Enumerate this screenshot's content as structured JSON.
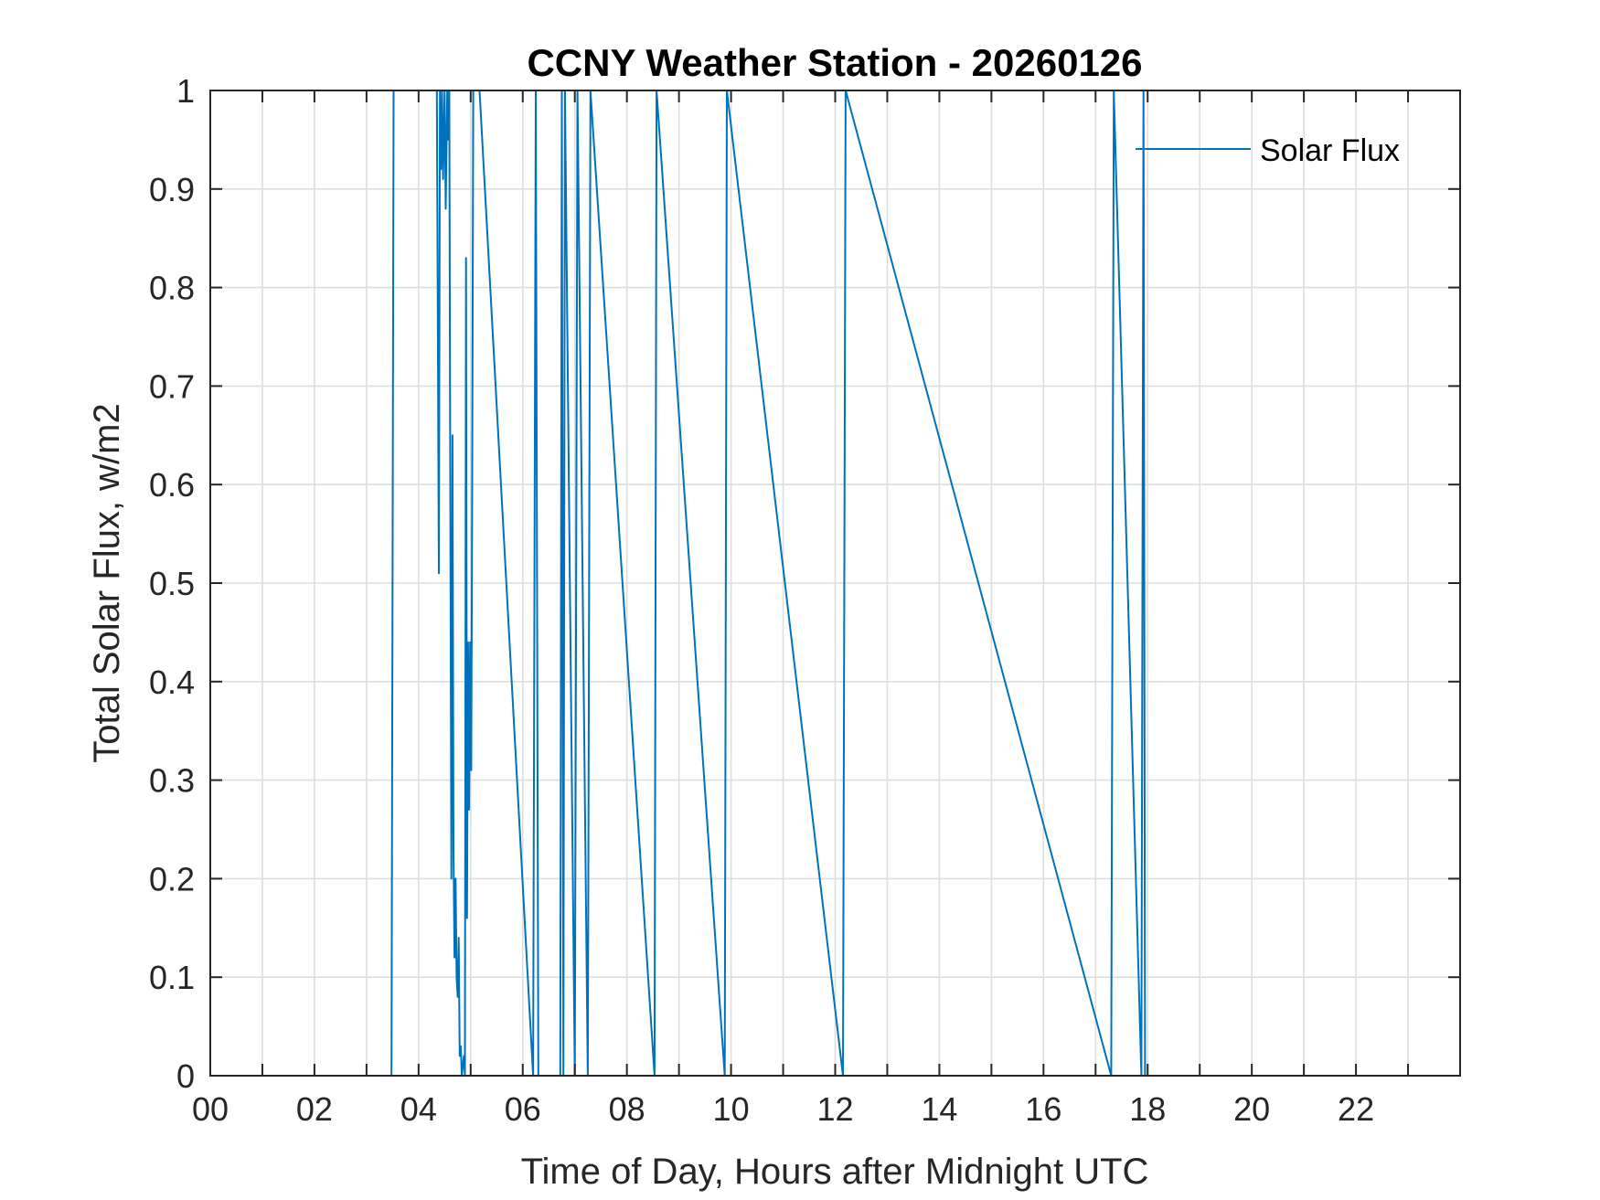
{
  "chart_data": {
    "type": "line",
    "title": "CCNY Weather Station - 20260126",
    "xlabel": "Time of Day, Hours after Midnight UTC",
    "ylabel": "Total Solar Flux, w/m2",
    "xlim": [
      0,
      24
    ],
    "ylim": [
      0,
      1
    ],
    "grid": true,
    "legend_position": "top-right",
    "xticks": [
      0,
      2,
      4,
      6,
      8,
      10,
      12,
      14,
      16,
      18,
      20,
      22
    ],
    "xtick_labels": [
      "00",
      "02",
      "04",
      "06",
      "08",
      "10",
      "12",
      "14",
      "16",
      "18",
      "20",
      "22"
    ],
    "yticks": [
      0,
      0.1,
      0.2,
      0.3,
      0.4,
      0.5,
      0.6,
      0.7,
      0.8,
      0.9,
      1
    ],
    "ytick_labels": [
      "0",
      "0.1",
      "0.2",
      "0.3",
      "0.4",
      "0.5",
      "0.6",
      "0.7",
      "0.8",
      "0.9",
      "1"
    ],
    "series": [
      {
        "name": "Solar Flux",
        "color": "#0072bd",
        "x": [
          3.48,
          3.52,
          4.35,
          4.37,
          4.39,
          4.41,
          4.43,
          4.45,
          4.47,
          4.5,
          4.52,
          4.55,
          4.57,
          4.59,
          4.61,
          4.63,
          4.65,
          4.67,
          4.69,
          4.71,
          4.73,
          4.75,
          4.77,
          4.79,
          4.81,
          4.83,
          4.85,
          4.87,
          4.89,
          4.91,
          4.93,
          4.95,
          4.97,
          4.99,
          5.01,
          5.03,
          5.05,
          5.07,
          5.09,
          5.11,
          5.13,
          5.15,
          5.17,
          6.2,
          6.25,
          6.3,
          6.72,
          6.75,
          6.78,
          6.81,
          7.0,
          7.05,
          7.25,
          7.3,
          8.53,
          8.57,
          9.88,
          9.92,
          12.15,
          12.2,
          17.3,
          17.35,
          17.88,
          17.92,
          17.95
        ],
        "y": [
          0,
          1,
          1,
          0.76,
          0.51,
          1,
          0.92,
          1,
          0.91,
          1,
          0.88,
          1,
          0.95,
          1,
          0.56,
          0.2,
          0.65,
          0.23,
          0.12,
          0.2,
          0.1,
          0.08,
          0.14,
          0.02,
          0.03,
          0,
          0.01,
          0.02,
          0,
          0.83,
          0.16,
          0.44,
          0.27,
          0.44,
          0.31,
          0.61,
          1,
          1,
          1,
          1,
          1,
          1,
          1,
          0,
          1,
          0,
          0,
          1,
          0,
          1,
          0,
          1,
          0,
          1,
          0,
          1,
          0,
          1,
          0,
          1,
          0,
          1,
          0,
          1,
          0
        ]
      }
    ]
  }
}
